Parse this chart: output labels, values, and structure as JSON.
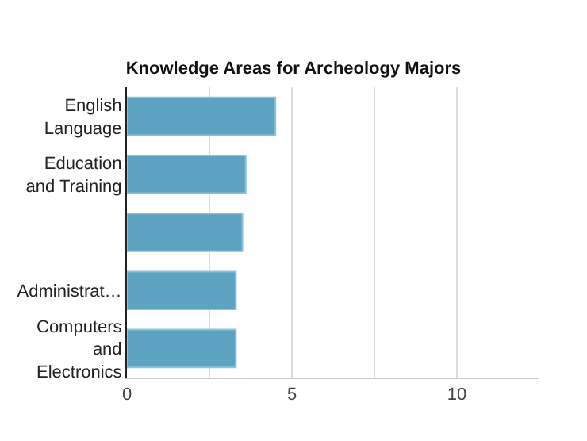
{
  "chart_data": {
    "type": "bar",
    "orientation": "horizontal",
    "title": "Knowledge Areas for Archeology Majors",
    "categories": [
      "English\nLanguage",
      "Education\nand Training",
      null,
      "Administrat…",
      "Computers\nand\nElectronics"
    ],
    "values": [
      4.5,
      3.6,
      3.5,
      3.3,
      3.3
    ],
    "color": "#5ba3c1",
    "xlim": [
      0,
      12.5
    ],
    "xticks": [
      0,
      {
        "value": 2.5,
        "label": null
      },
      5,
      {
        "value": 7.5,
        "label": null
      },
      10
    ],
    "grid": "x"
  }
}
